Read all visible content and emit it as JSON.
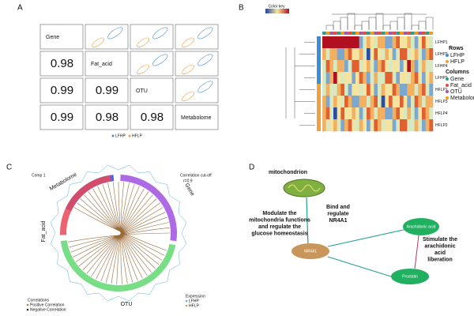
{
  "panel_a": {
    "letter": "A",
    "diagonal": [
      "Gene",
      "Fat_acid",
      "OTU",
      "Metabolome"
    ],
    "correlations": [
      [
        0.98
      ],
      [
        0.99,
        0.99
      ],
      [
        0.99,
        0.98,
        0.98
      ]
    ],
    "legend": [
      "LFHP",
      "HFLP"
    ]
  },
  "panel_b": {
    "letter": "B",
    "color_key": "Color key",
    "row_labels": [
      "LFHP1",
      "LFHP2",
      "LFHP4",
      "LFHP3",
      "HFLP1",
      "HFLP3",
      "HFLP4",
      "HFLP2"
    ],
    "rows_title": "Rows",
    "rows": [
      "LFHP",
      "HFLP"
    ],
    "columns_title": "Columns",
    "columns": [
      "Gene",
      "Fat_acid",
      "OTU",
      "Metabolome"
    ]
  },
  "panel_c": {
    "letter": "C",
    "comp": "Comp 1",
    "cutoff": "Correlation cut-off",
    "r": "r=0.9",
    "blocks": [
      "Metabolome",
      "Gene",
      "Fat_acid",
      "OTU"
    ],
    "correlations_title": "Correlations",
    "correlations": [
      "Positive Correlation",
      "Negative Correlation"
    ],
    "expression_title": "Expression",
    "expression": [
      "LFHP",
      "HFLP"
    ]
  },
  "panel_d": {
    "letter": "D",
    "mitochondrion": "mitochondrion",
    "modulate": [
      "Modulate the",
      "mitochondria functions",
      "and regulate the",
      "glucose homeostasis"
    ],
    "bind": [
      "Bind and",
      "regulate",
      "NR4A1"
    ],
    "stimulate": [
      "Stimulate the",
      "arachidonic",
      "acid",
      "liberation"
    ],
    "nodes": [
      "NR4A1",
      "Arachidonic acid",
      "Prostatin"
    ]
  }
}
